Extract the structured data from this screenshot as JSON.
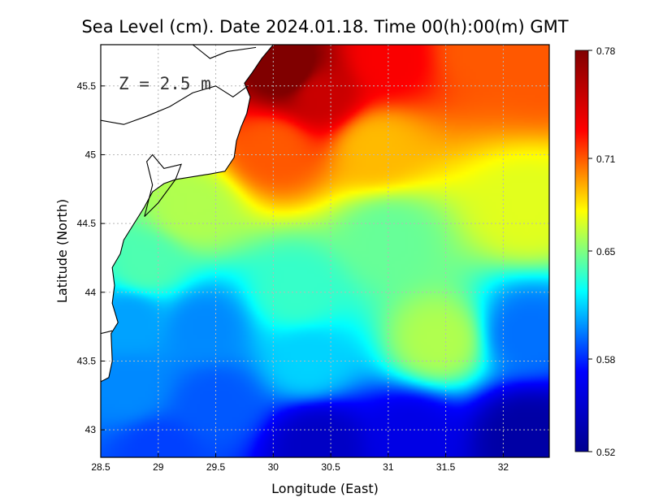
{
  "chart_data": {
    "type": "heatmap",
    "title": "Sea Level (cm). Date 2024.01.18. Time 00(h):00(m) GMT",
    "xlabel": "Longitude (East)",
    "ylabel": "Latitude (North)",
    "annotation": "Z = 2.5 m",
    "xlim": [
      28.5,
      32.4
    ],
    "ylim": [
      42.8,
      45.8
    ],
    "x_ticks": [
      28.5,
      29,
      29.5,
      30,
      30.5,
      31,
      31.5,
      32
    ],
    "x_tick_labels": [
      "28.5",
      "29",
      "29.5",
      "30",
      "30.5",
      "31",
      "31.5",
      "32"
    ],
    "y_ticks": [
      43,
      43.5,
      44,
      44.5,
      45,
      45.5
    ],
    "y_tick_labels": [
      "43",
      "43.5",
      "44",
      "44.5",
      "45",
      "45.5"
    ],
    "grid": true,
    "colorbar": {
      "min": 0.52,
      "max": 0.78,
      "ticks": [
        0.52,
        0.58,
        0.65,
        0.71,
        0.78
      ],
      "tick_labels": [
        "0.52",
        "0.58",
        "0.65",
        "0.71",
        "0.78"
      ],
      "colormap": [
        "#00008f",
        "#0000ff",
        "#00ffff",
        "#ffff00",
        "#ff0000",
        "#800000"
      ]
    },
    "field_centers": [
      {
        "lon": 30.15,
        "lat": 45.6,
        "value": 0.79
      },
      {
        "lon": 30.4,
        "lat": 45.45,
        "value": 0.75
      },
      {
        "lon": 31.0,
        "lat": 45.7,
        "value": 0.73
      },
      {
        "lon": 31.8,
        "lat": 45.75,
        "value": 0.71
      },
      {
        "lon": 32.3,
        "lat": 45.65,
        "value": 0.71
      },
      {
        "lon": 30.0,
        "lat": 45.05,
        "value": 0.71
      },
      {
        "lon": 30.9,
        "lat": 45.05,
        "value": 0.69
      },
      {
        "lon": 32.2,
        "lat": 44.6,
        "value": 0.67
      },
      {
        "lon": 29.3,
        "lat": 44.6,
        "value": 0.66
      },
      {
        "lon": 31.0,
        "lat": 44.4,
        "value": 0.645
      },
      {
        "lon": 28.9,
        "lat": 44.2,
        "value": 0.64
      },
      {
        "lon": 28.75,
        "lat": 43.8,
        "value": 0.605
      },
      {
        "lon": 29.4,
        "lat": 43.75,
        "value": 0.6
      },
      {
        "lon": 30.2,
        "lat": 44.0,
        "value": 0.635
      },
      {
        "lon": 31.45,
        "lat": 43.65,
        "value": 0.66
      },
      {
        "lon": 32.2,
        "lat": 43.7,
        "value": 0.595
      },
      {
        "lon": 30.3,
        "lat": 43.5,
        "value": 0.615
      },
      {
        "lon": 28.75,
        "lat": 43.3,
        "value": 0.6
      },
      {
        "lon": 29.5,
        "lat": 43.2,
        "value": 0.59
      },
      {
        "lon": 30.4,
        "lat": 42.9,
        "value": 0.545
      },
      {
        "lon": 31.2,
        "lat": 42.95,
        "value": 0.56
      },
      {
        "lon": 32.2,
        "lat": 42.95,
        "value": 0.53
      },
      {
        "lon": 29.0,
        "lat": 42.85,
        "value": 0.585
      }
    ],
    "coastline_lonlat": [
      [
        28.5,
        43.35
      ],
      [
        28.57,
        43.38
      ],
      [
        28.6,
        43.5
      ],
      [
        28.59,
        43.7
      ],
      [
        28.65,
        43.78
      ],
      [
        28.6,
        43.92
      ],
      [
        28.62,
        44.05
      ],
      [
        28.6,
        44.18
      ],
      [
        28.67,
        44.28
      ],
      [
        28.7,
        44.38
      ],
      [
        28.79,
        44.5
      ],
      [
        28.88,
        44.62
      ],
      [
        28.95,
        44.73
      ],
      [
        29.05,
        44.79
      ],
      [
        29.15,
        44.82
      ],
      [
        29.3,
        44.84
      ],
      [
        29.45,
        44.86
      ],
      [
        29.58,
        44.88
      ],
      [
        29.66,
        44.98
      ],
      [
        29.68,
        45.1
      ],
      [
        29.72,
        45.2
      ],
      [
        29.77,
        45.3
      ],
      [
        29.8,
        45.42
      ],
      [
        29.75,
        45.52
      ],
      [
        29.82,
        45.6
      ],
      [
        29.9,
        45.7
      ],
      [
        30.0,
        45.8
      ]
    ],
    "lagoon_lonlat": [
      [
        28.88,
        44.55
      ],
      [
        28.95,
        44.78
      ],
      [
        28.9,
        44.95
      ],
      [
        28.95,
        45.0
      ],
      [
        29.05,
        44.9
      ],
      [
        29.2,
        44.93
      ],
      [
        29.15,
        44.82
      ],
      [
        29.0,
        44.65
      ],
      [
        28.88,
        44.55
      ]
    ],
    "delta_branch_lonlat": [
      [
        28.5,
        45.25
      ],
      [
        28.7,
        45.22
      ],
      [
        28.9,
        45.28
      ],
      [
        29.1,
        45.35
      ],
      [
        29.3,
        45.45
      ],
      [
        29.5,
        45.5
      ],
      [
        29.65,
        45.42
      ],
      [
        29.78,
        45.5
      ]
    ],
    "river_upper_lonlat": [
      [
        29.3,
        45.8
      ],
      [
        29.45,
        45.7
      ],
      [
        29.6,
        45.75
      ],
      [
        29.85,
        45.78
      ]
    ],
    "west_border_lonlat": [
      [
        28.5,
        43.7
      ],
      [
        28.6,
        43.72
      ]
    ]
  }
}
